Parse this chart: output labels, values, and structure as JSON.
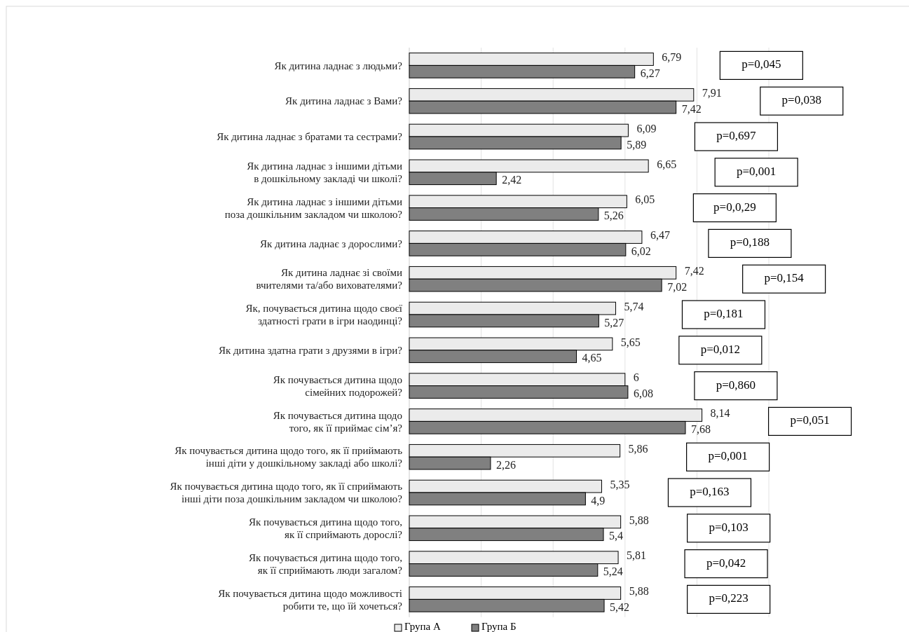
{
  "chart_data": {
    "type": "bar",
    "orientation": "horizontal",
    "categories": [
      "Як дитина ладнає з людьми?",
      "Як дитина ладнає з Вами?",
      "Як дитина ладнає з братами та сестрами?",
      "Як дитина ладнає з іншими дітьми\nв дошкільному закладі чи школі?",
      "Як дитина ладнає з іншими дітьми\nпоза дошкільним закладом чи школою?",
      "Як дитина ладнає з дорослими?",
      "Як дитина ладнає зі своїми\nвчителями та/або вихователями?",
      "Як, почувається  дитина щодо своєї\nздатності грати в ігри наодинці?",
      "Як дитина здатна грати з друзями в ігри?",
      "Як почувається дитина щодо\nсімейних подорожей?",
      "Як почувається  дитина щодо\nтого, як її приймає сім’я?",
      "Як почувається дитина щодо того, як її приймають\nінші діти у дошкільному закладі або школі?",
      "Як почувається дитина щодо того, як її сприймають\nінші діти поза дошкільним закладом чи школою?",
      "Як  почувається дитина щодо того,\nяк її сприймають дорослі?",
      "Як почувається дитина щодо того,\nяк її сприймають люди загалом?",
      "Як почувається  дитина щодо можливості\nробити те, що їй хочеться?"
    ],
    "series": [
      {
        "name": "Група А",
        "color": "#ebebeb",
        "values": [
          6.79,
          7.91,
          6.09,
          6.65,
          6.05,
          6.47,
          7.42,
          5.74,
          5.65,
          6,
          8.14,
          5.86,
          5.35,
          5.88,
          5.81,
          5.88
        ],
        "value_labels": [
          "6,79",
          "7,91",
          "6,09",
          "6,65",
          "6,05",
          "6,47",
          "7,42",
          "5,74",
          "5,65",
          "6",
          "8,14",
          "5,86",
          "5,35",
          "5,88",
          "5,81",
          "5,88"
        ]
      },
      {
        "name": "Група Б",
        "color": "#808080",
        "values": [
          6.27,
          7.42,
          5.89,
          2.42,
          5.26,
          6.02,
          7.02,
          5.27,
          4.65,
          6.08,
          7.68,
          2.26,
          4.9,
          5.4,
          5.24,
          5.42
        ],
        "value_labels": [
          "6,27",
          "7,42",
          "5,89",
          "2,42",
          "5,26",
          "6,02",
          "7,02",
          "5,27",
          "4,65",
          "6,08",
          "7,68",
          "2,26",
          "4,9",
          "5,4",
          "5,24",
          "5,42"
        ]
      }
    ],
    "xlim": [
      0,
      10
    ],
    "xticks": [
      {
        "value": 0,
        "label": null
      },
      {
        "value": 2,
        "label": null
      },
      {
        "value": 4,
        "label": null
      },
      {
        "value": 6,
        "label": null
      },
      {
        "value": 8,
        "label": null
      },
      {
        "value": 10,
        "label": null
      }
    ],
    "tick_labels": "y",
    "grid": "x",
    "legend": "bottom",
    "annotations": [
      "p=0,045",
      "p=0,038",
      "p=0,697",
      "p=0,001",
      "p=0,0,29",
      "p=0,188",
      "p=0,154",
      "p=0,181",
      "p=0,012",
      "p=0,860",
      "p=0,051",
      "p=0,001",
      "p=0,163",
      "p=0,103",
      "p=0,042",
      "p=0,223"
    ]
  }
}
